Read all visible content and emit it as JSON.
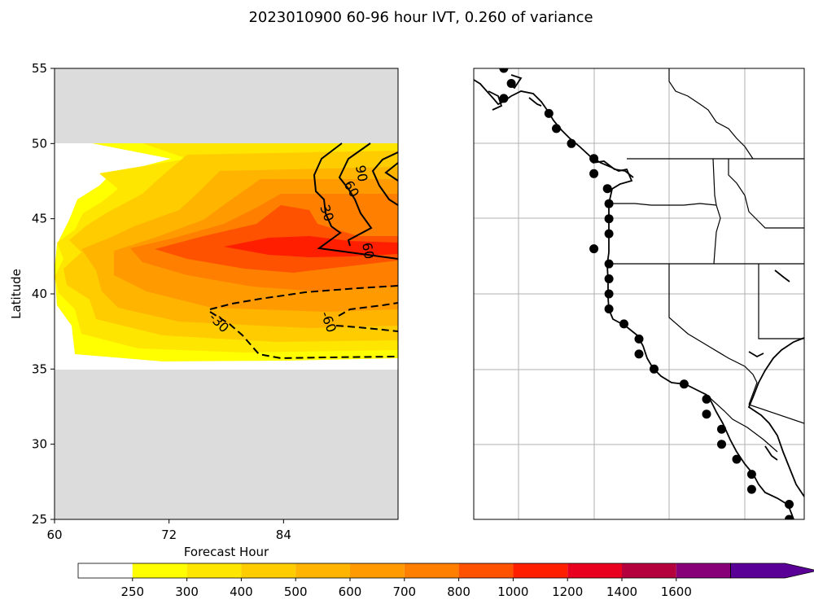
{
  "title": "2023010900 60-96 hour IVT, 0.260 of variance",
  "chart_data": [
    {
      "type": "contour",
      "xlabel": "Forecast Hour",
      "ylabel": "Latitude",
      "xlim": [
        60,
        96
      ],
      "ylim": [
        25,
        55
      ],
      "x_ticks": [
        60,
        72,
        84
      ],
      "y_ticks": [
        25,
        30,
        35,
        40,
        45,
        50,
        55
      ],
      "data_lat_range": [
        35,
        50
      ],
      "missing_color": "#dcdcdc",
      "filled_levels": [
        250,
        300,
        400,
        500,
        600,
        700,
        800,
        1000,
        1200,
        1400,
        1600
      ],
      "approx_max_region": {
        "forecast_hour": [
          78,
          92
        ],
        "latitude": [
          42.5,
          43.5
        ],
        "level": 800
      },
      "line_contours": [
        {
          "value": 30,
          "style": "solid",
          "label": "30"
        },
        {
          "value": 60,
          "style": "solid",
          "label": "60"
        },
        {
          "value": 90,
          "style": "solid",
          "label": "90"
        },
        {
          "value": -30,
          "style": "dashed",
          "label": "-30"
        },
        {
          "value": -60,
          "style": "dashed",
          "label": "-60"
        }
      ]
    },
    {
      "type": "map",
      "region": "US West Coast",
      "grid": true,
      "points": [
        {
          "lat": 55.0,
          "lon": -131.0
        },
        {
          "lat": 54.0,
          "lon": -130.5
        },
        {
          "lat": 53.0,
          "lon": -131.0
        },
        {
          "lat": 52.0,
          "lon": -128.0
        },
        {
          "lat": 51.0,
          "lon": -127.5
        },
        {
          "lat": 50.0,
          "lon": -126.5
        },
        {
          "lat": 49.0,
          "lon": -125.0
        },
        {
          "lat": 48.0,
          "lon": -125.0
        },
        {
          "lat": 47.0,
          "lon": -124.1
        },
        {
          "lat": 46.0,
          "lon": -124.0
        },
        {
          "lat": 45.0,
          "lon": -124.0
        },
        {
          "lat": 44.0,
          "lon": -124.0
        },
        {
          "lat": 43.0,
          "lon": -125.0
        },
        {
          "lat": 42.0,
          "lon": -124.0
        },
        {
          "lat": 41.0,
          "lon": -124.0
        },
        {
          "lat": 40.0,
          "lon": -124.0
        },
        {
          "lat": 39.0,
          "lon": -124.0
        },
        {
          "lat": 38.0,
          "lon": -123.0
        },
        {
          "lat": 37.0,
          "lon": -122.0
        },
        {
          "lat": 36.0,
          "lon": -122.0
        },
        {
          "lat": 35.0,
          "lon": -121.0
        },
        {
          "lat": 34.0,
          "lon": -119.0
        },
        {
          "lat": 33.0,
          "lon": -117.5
        },
        {
          "lat": 32.0,
          "lon": -117.5
        },
        {
          "lat": 31.0,
          "lon": -116.5
        },
        {
          "lat": 30.0,
          "lon": -116.5
        },
        {
          "lat": 29.0,
          "lon": -115.5
        },
        {
          "lat": 28.0,
          "lon": -114.5
        },
        {
          "lat": 27.0,
          "lon": -114.5
        },
        {
          "lat": 26.0,
          "lon": -112.0
        },
        {
          "lat": 25.0,
          "lon": -112.0
        }
      ]
    }
  ],
  "colorbar": {
    "labels": [
      "250",
      "300",
      "400",
      "500",
      "600",
      "700",
      "800",
      "1000",
      "1200",
      "1400",
      "1600"
    ],
    "colors": [
      "#ffffff",
      "#ffff00",
      "#ffe600",
      "#ffcc00",
      "#ffb400",
      "#ff9a00",
      "#ff7f00",
      "#ff5200",
      "#ff1e00",
      "#e8001e",
      "#b4003c",
      "#880078",
      "#5a0096"
    ],
    "extend": "max"
  }
}
